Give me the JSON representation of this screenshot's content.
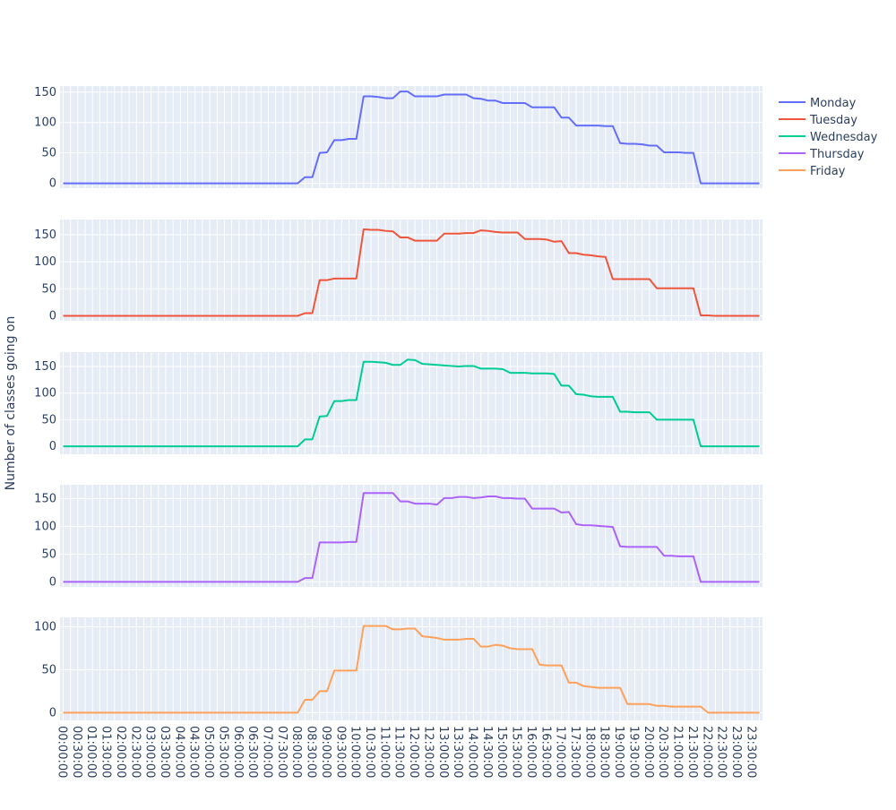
{
  "chart_data": {
    "type": "line",
    "ylabel": "Number of classes going on",
    "x_tick_labels": [
      "00:00:00",
      "00:30:00",
      "01:00:00",
      "01:30:00",
      "02:00:00",
      "02:30:00",
      "03:00:00",
      "03:30:00",
      "04:00:00",
      "04:30:00",
      "05:00:00",
      "05:30:00",
      "06:00:00",
      "06:30:00",
      "07:00:00",
      "07:30:00",
      "08:00:00",
      "08:30:00",
      "09:00:00",
      "09:30:00",
      "10:00:00",
      "10:30:00",
      "11:00:00",
      "11:30:00",
      "12:00:00",
      "12:30:00",
      "13:00:00",
      "13:30:00",
      "14:00:00",
      "14:30:00",
      "15:00:00",
      "15:30:00",
      "16:00:00",
      "16:30:00",
      "17:00:00",
      "17:30:00",
      "18:00:00",
      "18:30:00",
      "19:00:00",
      "19:30:00",
      "20:00:00",
      "20:30:00",
      "21:00:00",
      "21:30:00",
      "22:00:00",
      "22:30:00",
      "23:00:00",
      "23:30:00"
    ],
    "x_step_minutes": 15,
    "x_point_count": 96,
    "legend_position": "top-right",
    "grid": true,
    "series": [
      {
        "name": "Monday",
        "color": "#636efa",
        "ylim": [
          -8,
          160
        ],
        "yticks": [
          0,
          50,
          100,
          150
        ],
        "points": [
          [
            0,
            0
          ],
          [
            31,
            0
          ],
          [
            32,
            0
          ],
          [
            33,
            10
          ],
          [
            34,
            10
          ],
          [
            35,
            50
          ],
          [
            36,
            51
          ],
          [
            37,
            71
          ],
          [
            38,
            71
          ],
          [
            39,
            73
          ],
          [
            40,
            73
          ],
          [
            41,
            143
          ],
          [
            42,
            143
          ],
          [
            43,
            142
          ],
          [
            44,
            140
          ],
          [
            45,
            140
          ],
          [
            46,
            151
          ],
          [
            47,
            151
          ],
          [
            48,
            143
          ],
          [
            49,
            143
          ],
          [
            50,
            143
          ],
          [
            51,
            143
          ],
          [
            52,
            146
          ],
          [
            53,
            146
          ],
          [
            54,
            146
          ],
          [
            55,
            146
          ],
          [
            56,
            140
          ],
          [
            57,
            139
          ],
          [
            58,
            136
          ],
          [
            59,
            136
          ],
          [
            60,
            132
          ],
          [
            61,
            132
          ],
          [
            62,
            132
          ],
          [
            63,
            132
          ],
          [
            64,
            125
          ],
          [
            65,
            125
          ],
          [
            66,
            125
          ],
          [
            67,
            125
          ],
          [
            68,
            108
          ],
          [
            69,
            108
          ],
          [
            70,
            95
          ],
          [
            71,
            95
          ],
          [
            72,
            95
          ],
          [
            73,
            95
          ],
          [
            74,
            94
          ],
          [
            75,
            94
          ],
          [
            76,
            66
          ],
          [
            77,
            65
          ],
          [
            78,
            65
          ],
          [
            79,
            64
          ],
          [
            80,
            62
          ],
          [
            81,
            62
          ],
          [
            82,
            51
          ],
          [
            83,
            51
          ],
          [
            84,
            51
          ],
          [
            85,
            50
          ],
          [
            86,
            50
          ],
          [
            87,
            0
          ],
          [
            88,
            0
          ],
          [
            95,
            0
          ]
        ]
      },
      {
        "name": "Tuesday",
        "color": "#ef553b",
        "ylim": [
          -9,
          178
        ],
        "yticks": [
          0,
          50,
          100,
          150
        ],
        "points": [
          [
            0,
            0
          ],
          [
            31,
            0
          ],
          [
            32,
            0
          ],
          [
            33,
            5
          ],
          [
            34,
            5
          ],
          [
            35,
            66
          ],
          [
            36,
            66
          ],
          [
            37,
            69
          ],
          [
            38,
            69
          ],
          [
            39,
            69
          ],
          [
            40,
            69
          ],
          [
            41,
            160
          ],
          [
            42,
            159
          ],
          [
            43,
            159
          ],
          [
            44,
            157
          ],
          [
            45,
            156
          ],
          [
            46,
            145
          ],
          [
            47,
            145
          ],
          [
            48,
            139
          ],
          [
            49,
            139
          ],
          [
            50,
            139
          ],
          [
            51,
            139
          ],
          [
            52,
            152
          ],
          [
            53,
            152
          ],
          [
            54,
            152
          ],
          [
            55,
            153
          ],
          [
            56,
            153
          ],
          [
            57,
            158
          ],
          [
            58,
            157
          ],
          [
            59,
            155
          ],
          [
            60,
            154
          ],
          [
            61,
            154
          ],
          [
            62,
            154
          ],
          [
            63,
            142
          ],
          [
            64,
            142
          ],
          [
            65,
            142
          ],
          [
            66,
            141
          ],
          [
            67,
            137
          ],
          [
            68,
            138
          ],
          [
            69,
            116
          ],
          [
            70,
            116
          ],
          [
            71,
            113
          ],
          [
            72,
            112
          ],
          [
            73,
            110
          ],
          [
            74,
            109
          ],
          [
            75,
            68
          ],
          [
            76,
            68
          ],
          [
            77,
            68
          ],
          [
            78,
            68
          ],
          [
            79,
            68
          ],
          [
            80,
            68
          ],
          [
            81,
            51
          ],
          [
            82,
            51
          ],
          [
            83,
            51
          ],
          [
            84,
            51
          ],
          [
            85,
            51
          ],
          [
            86,
            51
          ],
          [
            87,
            1
          ],
          [
            88,
            1
          ],
          [
            89,
            0
          ],
          [
            95,
            0
          ]
        ]
      },
      {
        "name": "Wednesday",
        "color": "#00cc96",
        "ylim": [
          -15,
          177
        ],
        "yticks": [
          0,
          50,
          100,
          150
        ],
        "points": [
          [
            0,
            0
          ],
          [
            31,
            0
          ],
          [
            32,
            0
          ],
          [
            33,
            13
          ],
          [
            34,
            13
          ],
          [
            35,
            56
          ],
          [
            36,
            57
          ],
          [
            37,
            85
          ],
          [
            38,
            85
          ],
          [
            39,
            87
          ],
          [
            40,
            87
          ],
          [
            41,
            159
          ],
          [
            42,
            159
          ],
          [
            43,
            158
          ],
          [
            44,
            157
          ],
          [
            45,
            153
          ],
          [
            46,
            153
          ],
          [
            47,
            163
          ],
          [
            48,
            162
          ],
          [
            49,
            155
          ],
          [
            50,
            154
          ],
          [
            51,
            153
          ],
          [
            52,
            152
          ],
          [
            53,
            151
          ],
          [
            54,
            150
          ],
          [
            55,
            151
          ],
          [
            56,
            151
          ],
          [
            57,
            146
          ],
          [
            58,
            146
          ],
          [
            59,
            146
          ],
          [
            60,
            145
          ],
          [
            61,
            138
          ],
          [
            62,
            138
          ],
          [
            63,
            138
          ],
          [
            64,
            137
          ],
          [
            65,
            137
          ],
          [
            66,
            137
          ],
          [
            67,
            136
          ],
          [
            68,
            114
          ],
          [
            69,
            114
          ],
          [
            70,
            98
          ],
          [
            71,
            97
          ],
          [
            72,
            94
          ],
          [
            73,
            93
          ],
          [
            74,
            93
          ],
          [
            75,
            93
          ],
          [
            76,
            65
          ],
          [
            77,
            65
          ],
          [
            78,
            64
          ],
          [
            79,
            64
          ],
          [
            80,
            64
          ],
          [
            81,
            50
          ],
          [
            82,
            50
          ],
          [
            83,
            50
          ],
          [
            84,
            50
          ],
          [
            85,
            50
          ],
          [
            86,
            50
          ],
          [
            87,
            0
          ],
          [
            88,
            0
          ],
          [
            95,
            0
          ]
        ]
      },
      {
        "name": "Thursday",
        "color": "#ab63fa",
        "ylim": [
          -9,
          175
        ],
        "yticks": [
          0,
          50,
          100,
          150
        ],
        "points": [
          [
            0,
            0
          ],
          [
            31,
            0
          ],
          [
            32,
            0
          ],
          [
            33,
            7
          ],
          [
            34,
            7
          ],
          [
            35,
            71
          ],
          [
            36,
            71
          ],
          [
            37,
            71
          ],
          [
            38,
            71
          ],
          [
            39,
            72
          ],
          [
            40,
            72
          ],
          [
            41,
            160
          ],
          [
            42,
            160
          ],
          [
            43,
            160
          ],
          [
            44,
            160
          ],
          [
            45,
            160
          ],
          [
            46,
            145
          ],
          [
            47,
            145
          ],
          [
            48,
            141
          ],
          [
            49,
            141
          ],
          [
            50,
            141
          ],
          [
            51,
            139
          ],
          [
            52,
            151
          ],
          [
            53,
            151
          ],
          [
            54,
            153
          ],
          [
            55,
            153
          ],
          [
            56,
            151
          ],
          [
            57,
            152
          ],
          [
            58,
            154
          ],
          [
            59,
            154
          ],
          [
            60,
            151
          ],
          [
            61,
            151
          ],
          [
            62,
            150
          ],
          [
            63,
            150
          ],
          [
            64,
            132
          ],
          [
            65,
            132
          ],
          [
            66,
            132
          ],
          [
            67,
            132
          ],
          [
            68,
            125
          ],
          [
            69,
            126
          ],
          [
            70,
            104
          ],
          [
            71,
            102
          ],
          [
            72,
            102
          ],
          [
            73,
            101
          ],
          [
            74,
            100
          ],
          [
            75,
            99
          ],
          [
            76,
            64
          ],
          [
            77,
            63
          ],
          [
            78,
            63
          ],
          [
            79,
            63
          ],
          [
            80,
            63
          ],
          [
            81,
            63
          ],
          [
            82,
            47
          ],
          [
            83,
            47
          ],
          [
            84,
            46
          ],
          [
            85,
            46
          ],
          [
            86,
            46
          ],
          [
            87,
            0
          ],
          [
            88,
            0
          ],
          [
            95,
            0
          ]
        ]
      },
      {
        "name": "Friday",
        "color": "#ffa15a",
        "ylim": [
          -9,
          111
        ],
        "yticks": [
          0,
          50,
          100
        ],
        "points": [
          [
            0,
            0
          ],
          [
            31,
            0
          ],
          [
            32,
            0
          ],
          [
            33,
            15
          ],
          [
            34,
            15
          ],
          [
            35,
            25
          ],
          [
            36,
            25
          ],
          [
            37,
            49
          ],
          [
            38,
            49
          ],
          [
            39,
            49
          ],
          [
            40,
            49
          ],
          [
            41,
            101
          ],
          [
            42,
            101
          ],
          [
            43,
            101
          ],
          [
            44,
            101
          ],
          [
            45,
            97
          ],
          [
            46,
            97
          ],
          [
            47,
            98
          ],
          [
            48,
            98
          ],
          [
            49,
            89
          ],
          [
            50,
            88
          ],
          [
            51,
            87
          ],
          [
            52,
            85
          ],
          [
            53,
            85
          ],
          [
            54,
            85
          ],
          [
            55,
            86
          ],
          [
            56,
            86
          ],
          [
            57,
            77
          ],
          [
            58,
            77
          ],
          [
            59,
            79
          ],
          [
            60,
            78
          ],
          [
            61,
            75
          ],
          [
            62,
            74
          ],
          [
            63,
            74
          ],
          [
            64,
            74
          ],
          [
            65,
            56
          ],
          [
            66,
            55
          ],
          [
            67,
            55
          ],
          [
            68,
            55
          ],
          [
            69,
            35
          ],
          [
            70,
            35
          ],
          [
            71,
            31
          ],
          [
            72,
            30
          ],
          [
            73,
            29
          ],
          [
            74,
            29
          ],
          [
            75,
            29
          ],
          [
            76,
            29
          ],
          [
            77,
            10
          ],
          [
            78,
            10
          ],
          [
            79,
            10
          ],
          [
            80,
            10
          ],
          [
            81,
            8
          ],
          [
            82,
            8
          ],
          [
            83,
            7
          ],
          [
            84,
            7
          ],
          [
            85,
            7
          ],
          [
            86,
            7
          ],
          [
            87,
            7
          ],
          [
            88,
            0
          ],
          [
            95,
            0
          ]
        ]
      }
    ]
  }
}
